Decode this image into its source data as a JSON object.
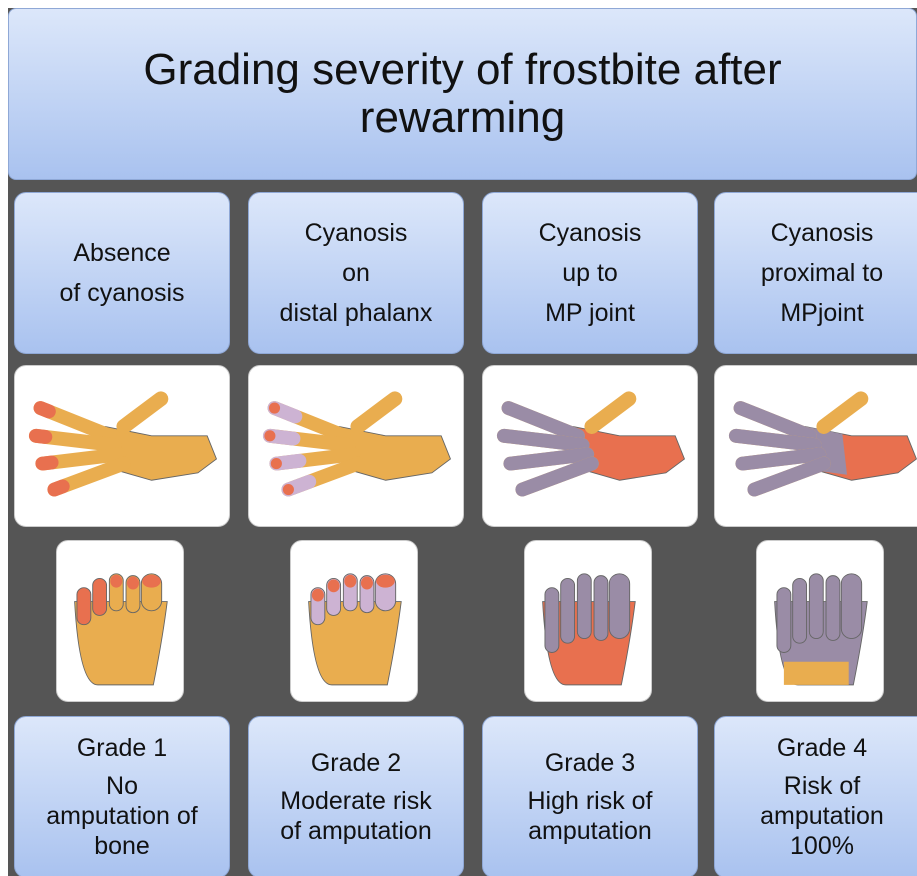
{
  "title": "Grading severity of frostbite after rewarming",
  "columns": [
    {
      "description": [
        "Absence",
        "of cyanosis"
      ],
      "grade": "Grade 1",
      "outcome": [
        "No",
        "amputation of",
        "bone"
      ]
    },
    {
      "description": [
        "Cyanosis",
        "on",
        "distal phalanx"
      ],
      "grade": "Grade 2",
      "outcome": [
        "Moderate risk",
        "of amputation"
      ]
    },
    {
      "description": [
        "Cyanosis",
        "up to",
        "MP joint"
      ],
      "grade": "Grade 3",
      "outcome": [
        "High risk of",
        "amputation"
      ]
    },
    {
      "description": [
        "Cyanosis",
        "proximal to",
        "MPjoint"
      ],
      "grade": "Grade 4",
      "outcome": [
        "Risk of",
        "amputation",
        "100%"
      ]
    }
  ]
}
